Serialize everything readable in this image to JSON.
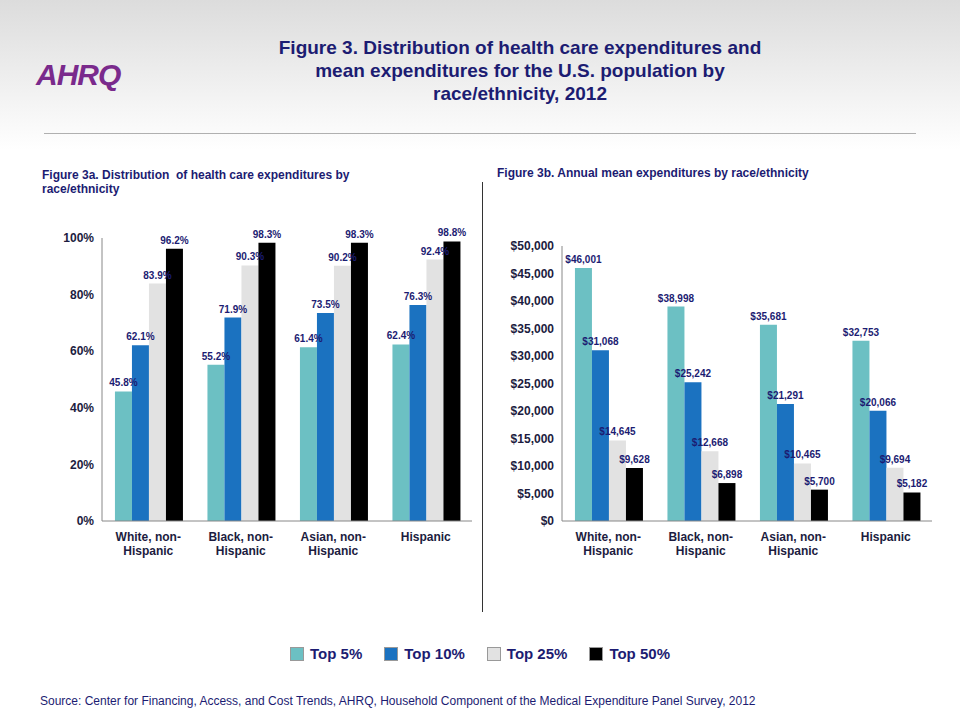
{
  "title": "Figure 3. Distribution of health care expenditures and mean expenditures for the U.S. population by race/ethnicity, 2012",
  "logo": "AHRQ",
  "source": "Source: Center for Financing, Access, and Cost Trends, AHRQ, Household Component of the Medical Expenditure Panel Survey, 2012",
  "chart_data": [
    {
      "type": "bar",
      "title": "Figure 3a. Distribution  of health care expenditures by race/ethnicity",
      "categories": [
        "White, non-Hispanic",
        "Black, non-Hispanic",
        "Asian, non-Hispanic",
        "Hispanic"
      ],
      "series": [
        {
          "name": "Top 5%",
          "color": "#6cc0c3",
          "values": [
            45.8,
            55.2,
            61.4,
            62.4
          ],
          "value_labels": [
            "45.8%",
            "55.2%",
            "61.4%",
            "62.4%"
          ]
        },
        {
          "name": "Top 10%",
          "color": "#1b72c0",
          "values": [
            62.1,
            71.9,
            73.5,
            76.3
          ],
          "value_labels": [
            "62.1%",
            "71.9%",
            "73.5%",
            "76.3%"
          ]
        },
        {
          "name": "Top 25%",
          "color": "#e2e2e2",
          "values": [
            83.9,
            90.3,
            90.2,
            92.4
          ],
          "value_labels": [
            "83.9%",
            "90.3%",
            "90.2%",
            "92.4%"
          ]
        },
        {
          "name": "Top 50%",
          "color": "#000000",
          "values": [
            96.2,
            98.3,
            98.3,
            98.8
          ],
          "value_labels": [
            "96.2%",
            "98.3%",
            "98.3%",
            "98.8%"
          ]
        }
      ],
      "ylim": [
        0,
        100
      ],
      "yticks": [
        {
          "value": 0,
          "label": "0%"
        },
        {
          "value": 20,
          "label": "20%"
        },
        {
          "value": 40,
          "label": "40%"
        },
        {
          "value": 60,
          "label": "60%"
        },
        {
          "value": 80,
          "label": "80%"
        },
        {
          "value": 100,
          "label": "100%"
        }
      ],
      "grid": false,
      "data_labels": true,
      "legend": "bottom"
    },
    {
      "type": "bar",
      "title": "Figure 3b. Annual mean expenditures by race/ethnicity",
      "categories": [
        "White, non-Hispanic",
        "Black, non-Hispanic",
        "Asian, non-Hispanic",
        "Hispanic"
      ],
      "series": [
        {
          "name": "Top 5%",
          "color": "#6cc0c3",
          "values": [
            46001,
            38998,
            35681,
            32753
          ],
          "value_labels": [
            "$46,001",
            "$38,998",
            "$35,681",
            "$32,753"
          ]
        },
        {
          "name": "Top 10%",
          "color": "#1b72c0",
          "values": [
            31068,
            25242,
            21291,
            20066
          ],
          "value_labels": [
            "$31,068",
            "$25,242",
            "$21,291",
            "$20,066"
          ]
        },
        {
          "name": "Top 25%",
          "color": "#e2e2e2",
          "values": [
            14645,
            12668,
            10465,
            9694
          ],
          "value_labels": [
            "$14,645",
            "$12,668",
            "$10,465",
            "$9,694"
          ]
        },
        {
          "name": "Top 50%",
          "color": "#000000",
          "values": [
            9628,
            6898,
            5700,
            5182
          ],
          "value_labels": [
            "$9,628",
            "$6,898",
            "$5,700",
            "$5,182"
          ]
        }
      ],
      "ylim": [
        0,
        50000
      ],
      "yticks": [
        {
          "value": 0,
          "label": "$0"
        },
        {
          "value": 5000,
          "label": "$5,000"
        },
        {
          "value": 10000,
          "label": "$10,000"
        },
        {
          "value": 15000,
          "label": "$15,000"
        },
        {
          "value": 20000,
          "label": "$20,000"
        },
        {
          "value": 25000,
          "label": "$25,000"
        },
        {
          "value": 30000,
          "label": "$30,000"
        },
        {
          "value": 35000,
          "label": "$35,000"
        },
        {
          "value": 40000,
          "label": "$40,000"
        },
        {
          "value": 45000,
          "label": "$45,000"
        },
        {
          "value": 50000,
          "label": "$50,000"
        }
      ],
      "grid": false,
      "data_labels": true,
      "legend": "bottom"
    }
  ]
}
